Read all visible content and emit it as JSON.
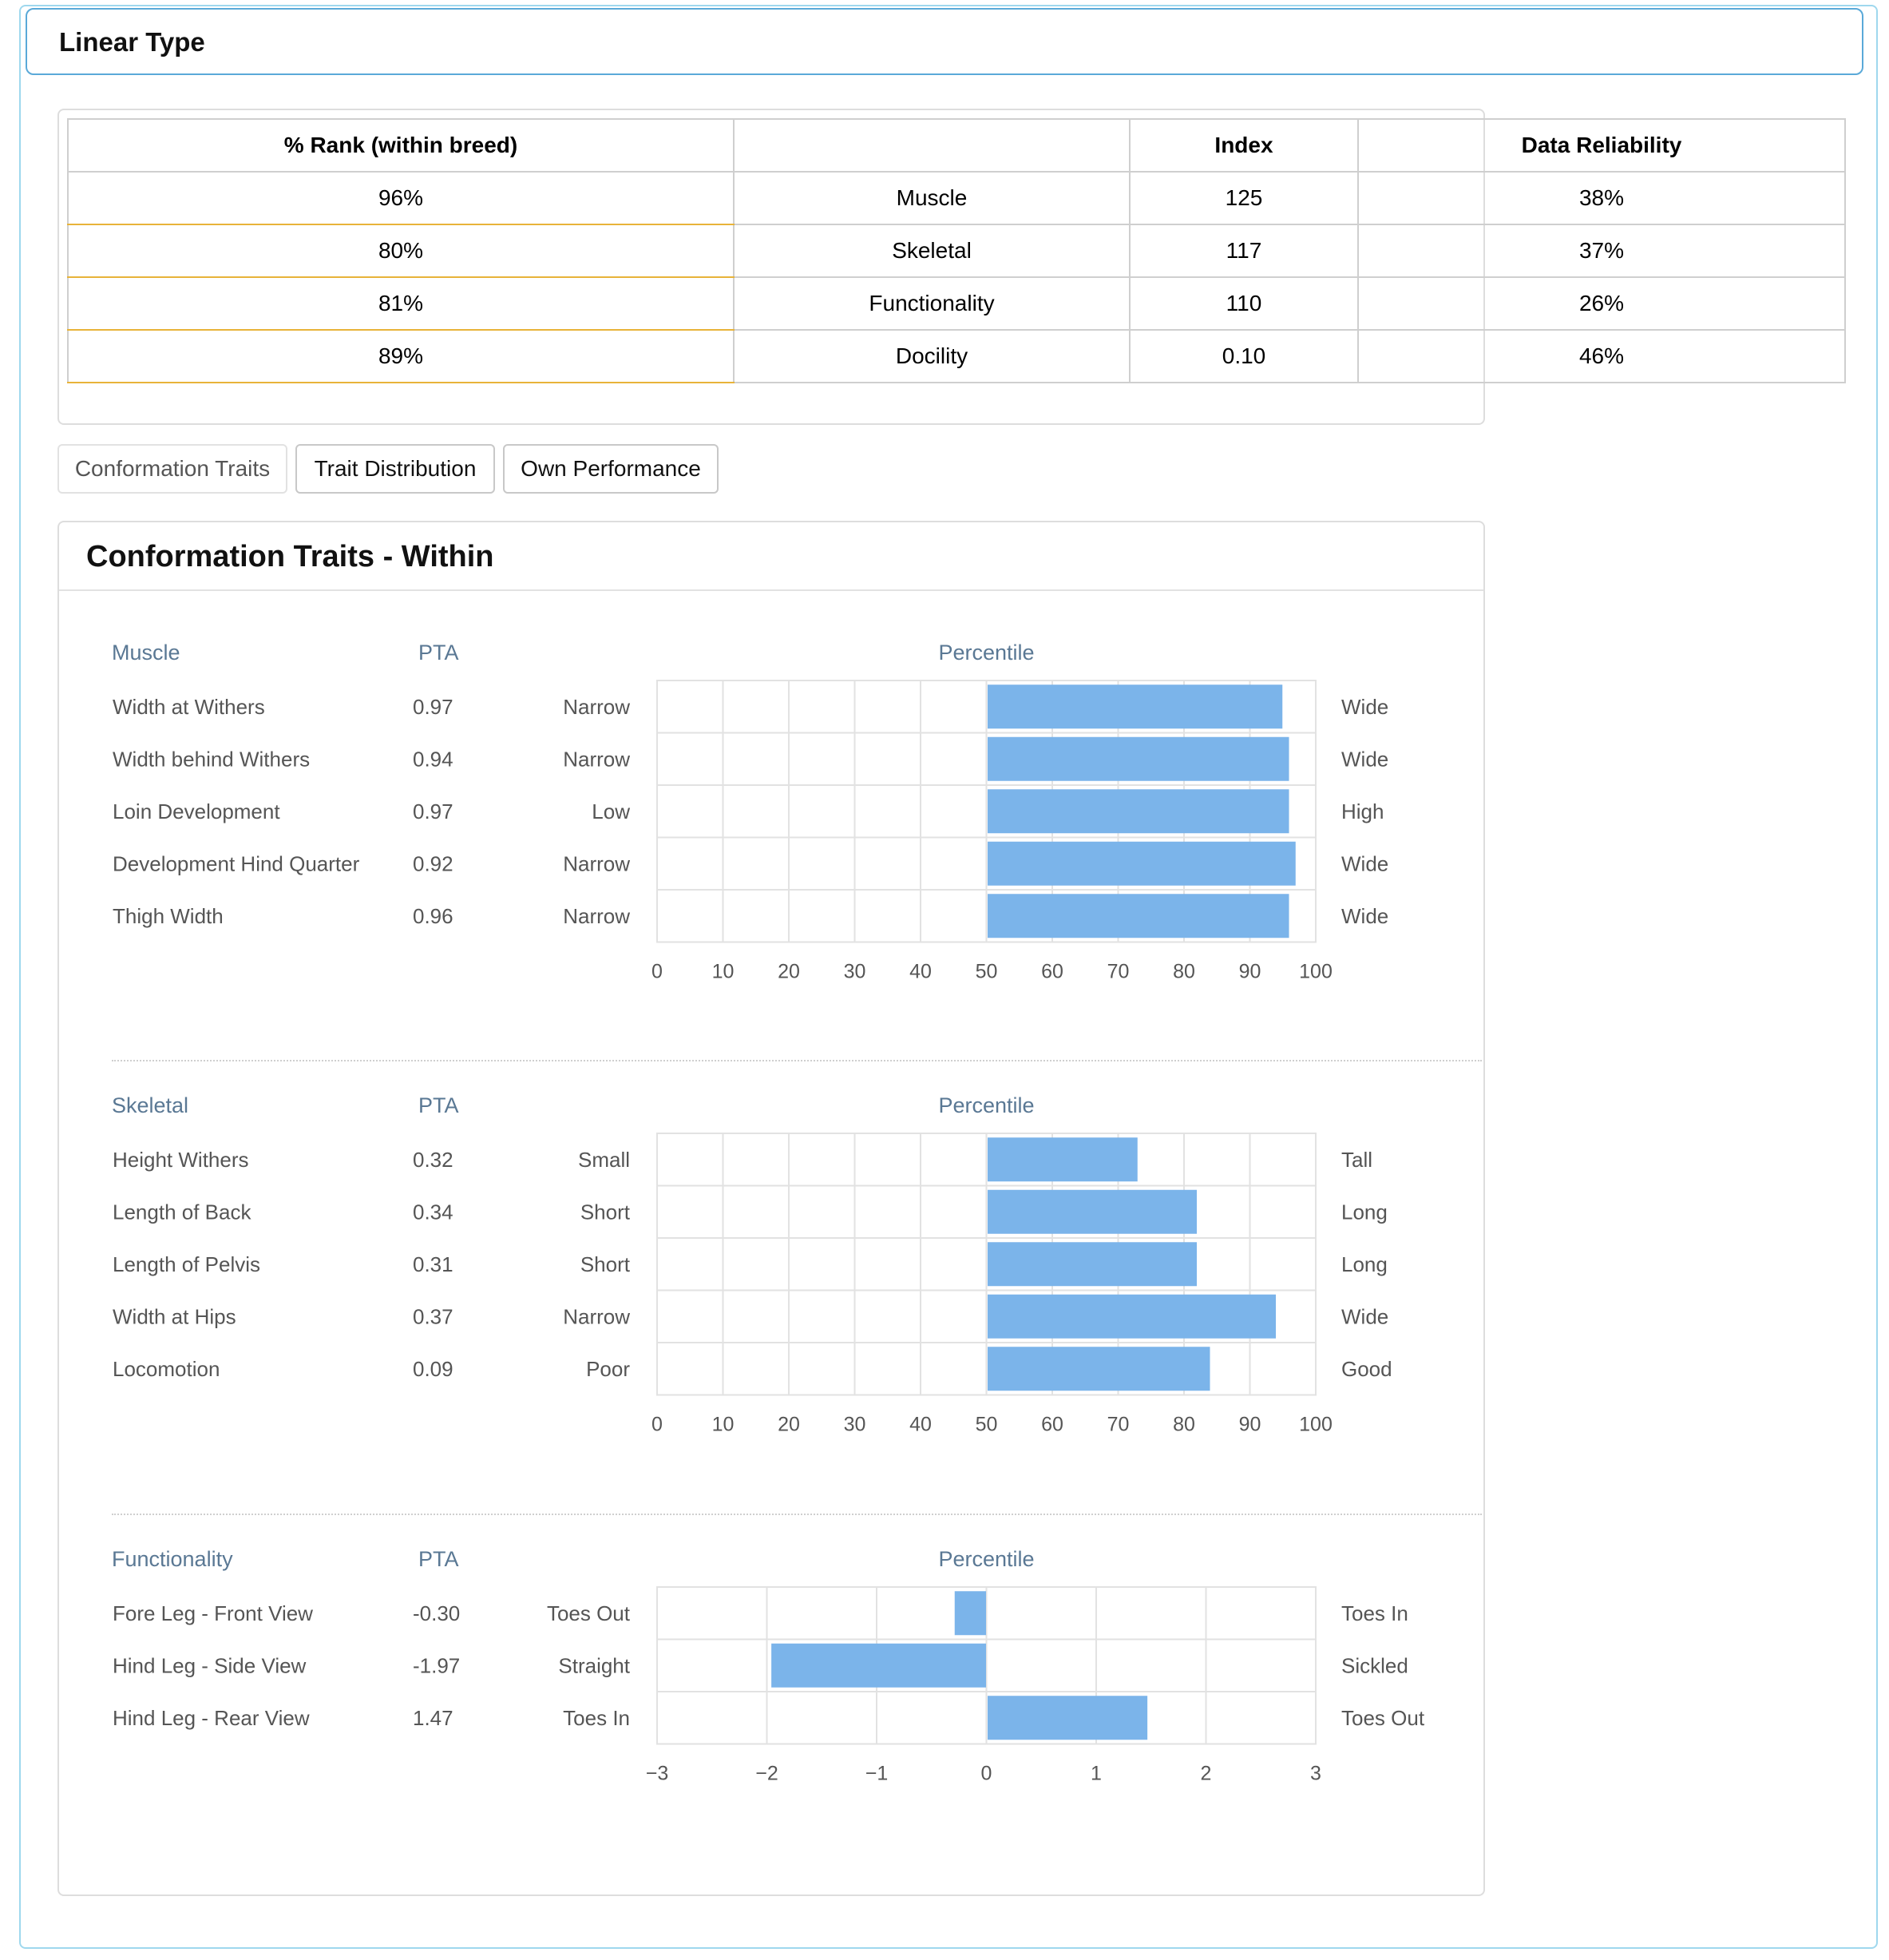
{
  "header": {
    "title": "Linear Type"
  },
  "summary": {
    "columns": [
      "% Rank (within breed)",
      "",
      "Index",
      "Data Reliability"
    ],
    "rows": [
      {
        "rank": "96%",
        "trait": "Muscle",
        "index": "125",
        "reliability": "38%"
      },
      {
        "rank": "80%",
        "trait": "Skeletal",
        "index": "117",
        "reliability": "37%"
      },
      {
        "rank": "81%",
        "trait": "Functionality",
        "index": "110",
        "reliability": "26%"
      },
      {
        "rank": "89%",
        "trait": "Docility",
        "index": "0.10",
        "reliability": "46%"
      }
    ]
  },
  "tabs": [
    "Conformation Traits",
    "Trait Distribution",
    "Own Performance"
  ],
  "active_tab": "Conformation Traits",
  "section": {
    "title": "Conformation Traits - Within"
  },
  "colors": {
    "bar": "#7bb4ea",
    "label": "#5a7894",
    "text": "#555555",
    "grid": "#e2e2e2",
    "accent": "#e8b339"
  },
  "chart_data": [
    {
      "type": "bar",
      "orientation": "horizontal",
      "group": "Muscle",
      "pta_label": "PTA",
      "value_label": "Percentile",
      "xlim": [
        0,
        100
      ],
      "baseline": 50,
      "ticks": [
        "0",
        "10",
        "20",
        "30",
        "40",
        "50",
        "60",
        "70",
        "80",
        "90",
        "100"
      ],
      "categories": [
        "Width at Withers",
        "Width behind Withers",
        "Loin Development",
        "Development Hind Quarter",
        "Thigh Width"
      ],
      "pta": [
        "0.97",
        "0.94",
        "0.97",
        "0.92",
        "0.96"
      ],
      "low_labels": [
        "Narrow",
        "Narrow",
        "Low",
        "Narrow",
        "Narrow"
      ],
      "high_labels": [
        "Wide",
        "Wide",
        "High",
        "Wide",
        "Wide"
      ],
      "values": [
        95,
        96,
        96,
        97,
        96
      ]
    },
    {
      "type": "bar",
      "orientation": "horizontal",
      "group": "Skeletal",
      "pta_label": "PTA",
      "value_label": "Percentile",
      "xlim": [
        0,
        100
      ],
      "baseline": 50,
      "ticks": [
        "0",
        "10",
        "20",
        "30",
        "40",
        "50",
        "60",
        "70",
        "80",
        "90",
        "100"
      ],
      "categories": [
        "Height Withers",
        "Length of Back",
        "Length of Pelvis",
        "Width at Hips",
        "Locomotion"
      ],
      "pta": [
        "0.32",
        "0.34",
        "0.31",
        "0.37",
        "0.09"
      ],
      "low_labels": [
        "Small",
        "Short",
        "Short",
        "Narrow",
        "Poor"
      ],
      "high_labels": [
        "Tall",
        "Long",
        "Long",
        "Wide",
        "Good"
      ],
      "values": [
        73,
        82,
        82,
        94,
        84
      ]
    },
    {
      "type": "bar",
      "orientation": "horizontal",
      "group": "Functionality",
      "pta_label": "PTA",
      "value_label": "Percentile",
      "xlim": [
        -3,
        3
      ],
      "baseline": 0,
      "ticks": [
        "−3",
        "−2",
        "−1",
        "0",
        "1",
        "2",
        "3"
      ],
      "categories": [
        "Fore Leg - Front View",
        "Hind Leg - Side View",
        "Hind Leg - Rear View"
      ],
      "pta": [
        "-0.30",
        "-1.97",
        "1.47"
      ],
      "low_labels": [
        "Toes Out",
        "Straight",
        "Toes In"
      ],
      "high_labels": [
        "Toes In",
        "Sickled",
        "Toes Out"
      ],
      "values": [
        -0.3,
        -1.97,
        1.47
      ]
    }
  ]
}
